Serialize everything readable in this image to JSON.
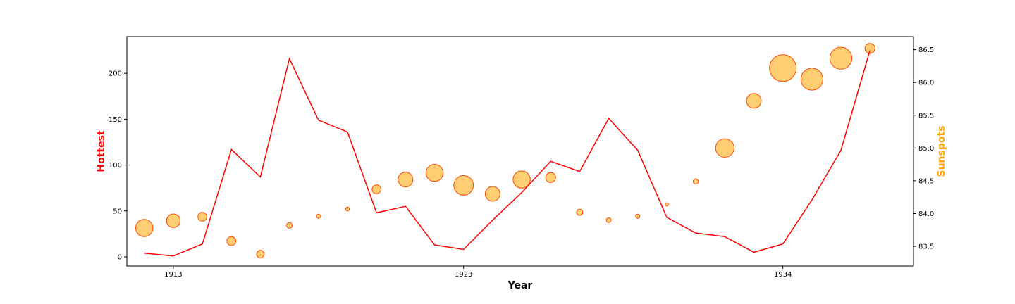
{
  "chart_data": {
    "type": "line+scatter",
    "x": [
      1912,
      1913,
      1914,
      1915,
      1916,
      1917,
      1918,
      1919,
      1920,
      1921,
      1922,
      1923,
      1924,
      1925,
      1926,
      1927,
      1928,
      1929,
      1930,
      1931,
      1932,
      1933,
      1934,
      1935,
      1936,
      1937
    ],
    "xlabel": "Year",
    "xticks": [
      1913,
      1923,
      1934
    ],
    "xlim": [
      1911.4,
      1938.5
    ],
    "hottest": {
      "name": "Hottest",
      "color": "#ff0000",
      "values": [
        4,
        1,
        14,
        117,
        87,
        216,
        149,
        136,
        48,
        55,
        13,
        8,
        40,
        70,
        104,
        93,
        151,
        116,
        43,
        26,
        22,
        5,
        14,
        62,
        116,
        225
      ],
      "ylim": [
        -10,
        240
      ],
      "yticks": [
        0,
        50,
        100,
        150,
        200
      ]
    },
    "sunspots": {
      "name": "Sunspots",
      "color": "#ffa500",
      "edge_color": "#ff4500",
      "values": [
        83.78,
        83.89,
        83.95,
        83.58,
        83.38,
        83.82,
        83.96,
        84.07,
        84.37,
        84.52,
        84.62,
        84.43,
        84.3,
        84.52,
        84.55,
        84.02,
        83.9,
        83.96,
        84.14,
        84.49,
        85.0,
        85.72,
        86.22,
        86.05,
        86.37,
        86.52
      ],
      "sizes": [
        0.6,
        0.45,
        0.25,
        0.25,
        0.2,
        0.12,
        0.06,
        0.04,
        0.25,
        0.5,
        0.6,
        0.7,
        0.5,
        0.6,
        0.3,
        0.15,
        0.08,
        0.06,
        0.02,
        0.1,
        0.65,
        0.5,
        1.0,
        0.8,
        0.8,
        0.3
      ],
      "ylim": [
        83.2,
        86.7
      ],
      "yticks": [
        83.5,
        84.0,
        84.5,
        85.0,
        85.5,
        86.0,
        86.5
      ]
    }
  }
}
